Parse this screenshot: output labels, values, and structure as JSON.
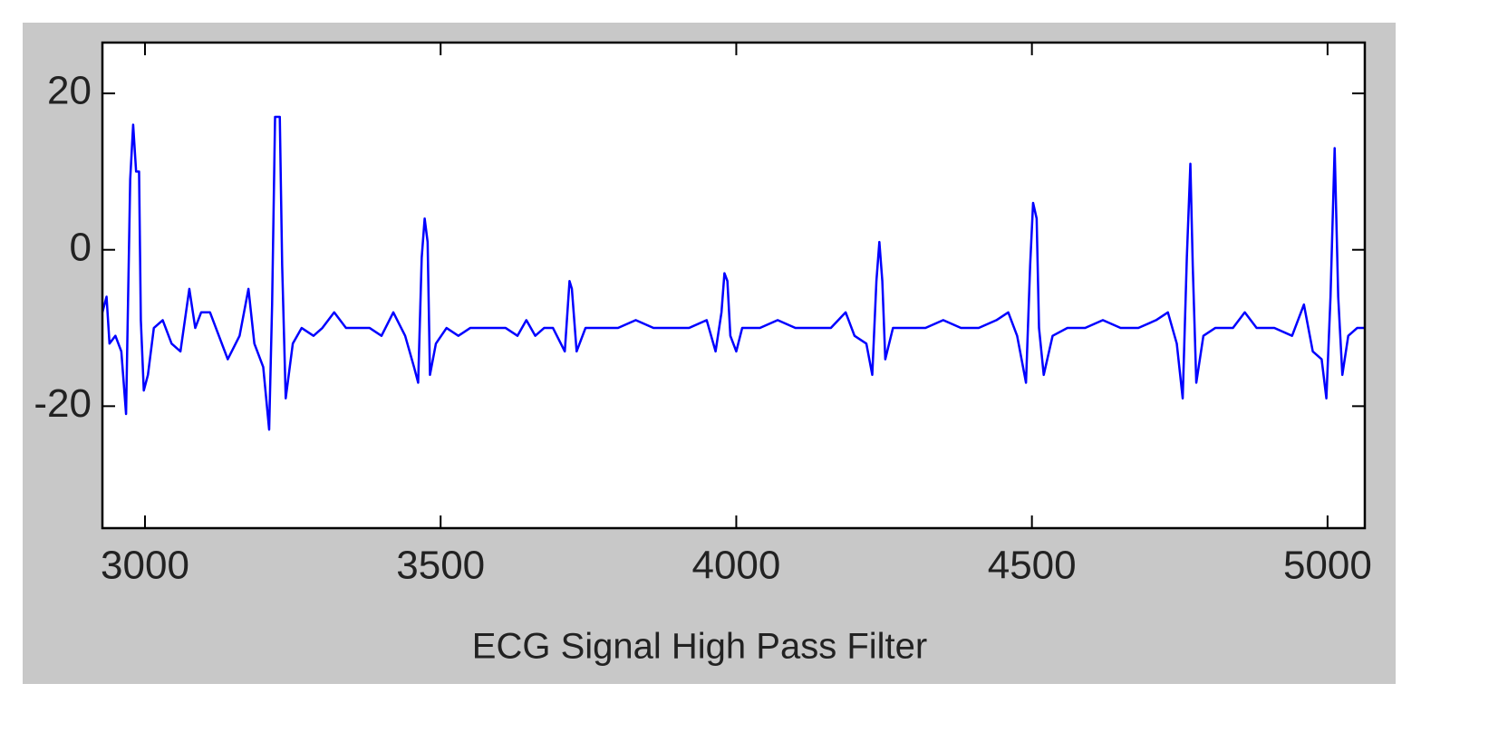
{
  "chart_data": {
    "type": "line",
    "title": "ECG Signal High Pass Filter",
    "color": "#0000ff",
    "xlim": [
      2928,
      5063
    ],
    "xticks": [
      3000,
      3500,
      4000,
      4500,
      5000
    ],
    "ylim": [
      -35.6,
      26.5
    ],
    "yticks": [
      20,
      0,
      -20
    ],
    "grid": false,
    "x": [
      2928,
      2935,
      2940,
      2950,
      2960,
      2968,
      2975,
      2980,
      2985,
      2990,
      2993,
      2998,
      3005,
      3015,
      3030,
      3045,
      3060,
      3075,
      3085,
      3095,
      3110,
      3125,
      3140,
      3160,
      3175,
      3185,
      3200,
      3210,
      3215,
      3220,
      3228,
      3232,
      3238,
      3250,
      3265,
      3285,
      3300,
      3320,
      3340,
      3360,
      3380,
      3400,
      3420,
      3440,
      3455,
      3462,
      3468,
      3473,
      3478,
      3482,
      3492,
      3510,
      3530,
      3550,
      3570,
      3590,
      3610,
      3630,
      3645,
      3660,
      3675,
      3690,
      3710,
      3718,
      3722,
      3730,
      3745,
      3770,
      3800,
      3830,
      3860,
      3890,
      3920,
      3950,
      3965,
      3975,
      3980,
      3985,
      3990,
      4000,
      4010,
      4040,
      4070,
      4100,
      4130,
      4160,
      4185,
      4200,
      4220,
      4230,
      4237,
      4242,
      4247,
      4252,
      4265,
      4290,
      4320,
      4350,
      4380,
      4410,
      4440,
      4460,
      4475,
      4490,
      4497,
      4502,
      4508,
      4512,
      4520,
      4535,
      4560,
      4590,
      4620,
      4650,
      4680,
      4710,
      4730,
      4745,
      4755,
      4762,
      4768,
      4772,
      4778,
      4790,
      4810,
      4840,
      4860,
      4880,
      4910,
      4940,
      4960,
      4975,
      4990,
      4998,
      5005,
      5012,
      5018,
      5025,
      5035,
      5050,
      5063
    ],
    "values": [
      -8,
      -6,
      -12,
      -11,
      -13,
      -21,
      9,
      16,
      10,
      10,
      -9,
      -18,
      -16,
      -10,
      -9,
      -12,
      -13,
      -5,
      -10,
      -8,
      -8,
      -11,
      -14,
      -11,
      -5,
      -12,
      -15,
      -23,
      -7,
      17,
      17,
      -2,
      -19,
      -12,
      -10,
      -11,
      -10,
      -8,
      -10,
      -10,
      -10,
      -11,
      -8,
      -11,
      -15,
      -17,
      -1,
      4,
      1,
      -16,
      -12,
      -10,
      -11,
      -10,
      -10,
      -10,
      -10,
      -11,
      -9,
      -11,
      -10,
      -10,
      -13,
      -4,
      -5,
      -13,
      -10,
      -10,
      -10,
      -9,
      -10,
      -10,
      -10,
      -9,
      -13,
      -8,
      -3,
      -4,
      -11,
      -13,
      -10,
      -10,
      -9,
      -10,
      -10,
      -10,
      -8,
      -11,
      -12,
      -16,
      -4,
      1,
      -4,
      -14,
      -10,
      -10,
      -10,
      -9,
      -10,
      -10,
      -9,
      -8,
      -11,
      -17,
      -2,
      6,
      4,
      -10,
      -16,
      -11,
      -10,
      -10,
      -9,
      -10,
      -10,
      -9,
      -8,
      -12,
      -19,
      -1,
      11,
      -2,
      -17,
      -11,
      -10,
      -10,
      -8,
      -10,
      -10,
      -11,
      -7,
      -13,
      -14,
      -19,
      -6,
      13,
      -6,
      -16,
      -11,
      -10,
      -10
    ]
  }
}
